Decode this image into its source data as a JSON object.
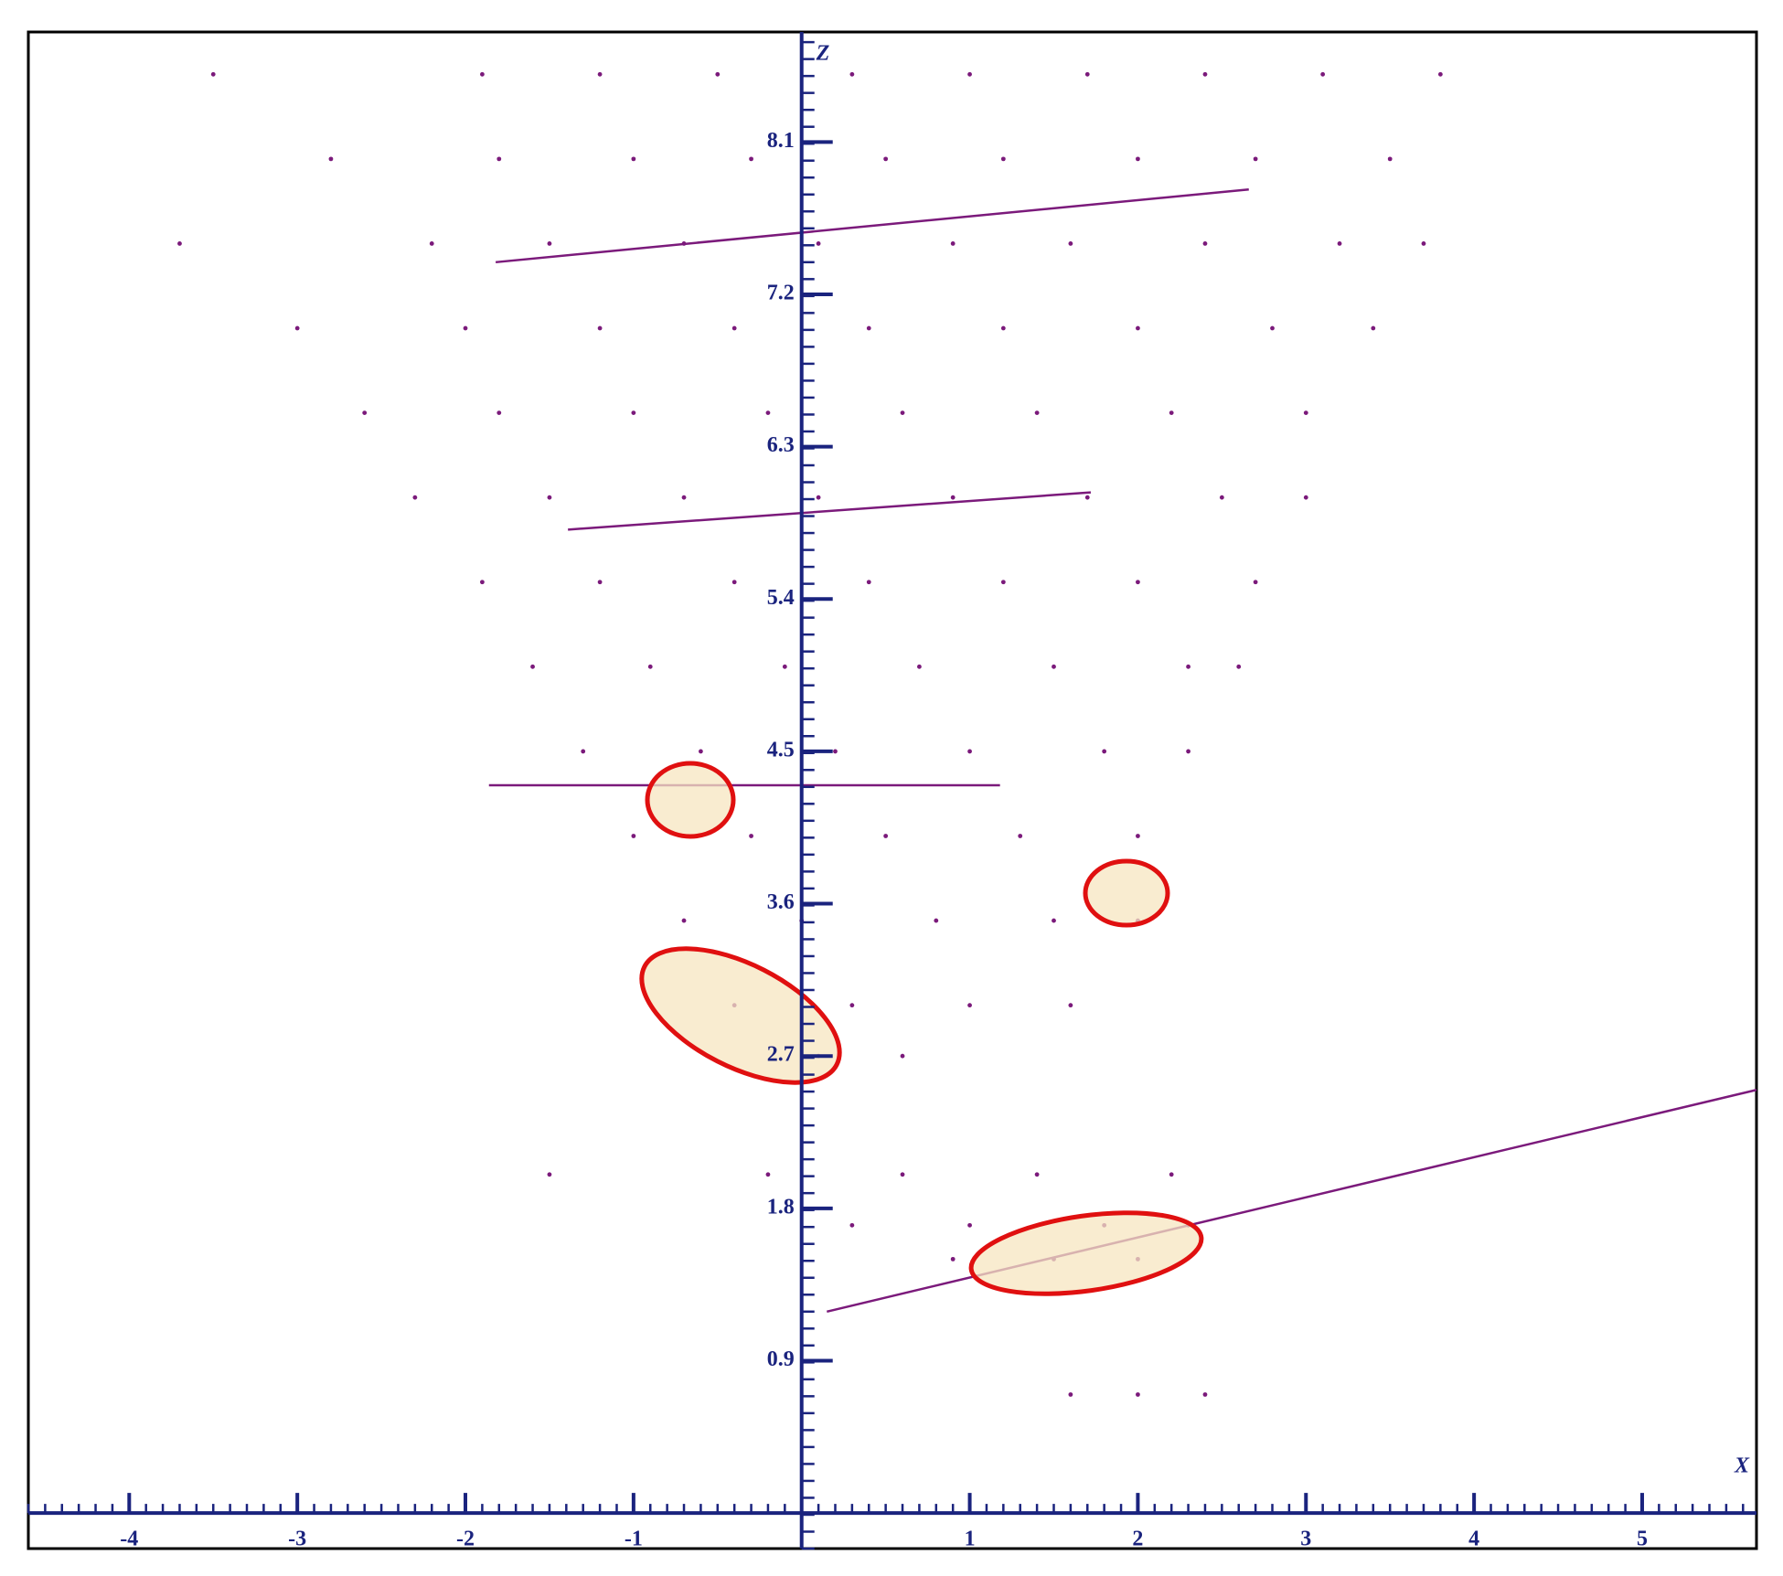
{
  "chart_data": {
    "type": "scatter",
    "x_label": "X",
    "y_label": "Z",
    "xlim": [
      -4.6,
      5.68
    ],
    "ylim": [
      -0.21,
      8.75
    ],
    "xticks": [
      -4,
      -3,
      -2,
      -1,
      1,
      2,
      3,
      4,
      5
    ],
    "yticks": [
      0.9,
      1.8,
      2.7,
      3.6,
      4.5,
      5.4,
      6.3,
      7.2,
      8.1
    ],
    "axis_color": "#1a237e",
    "series": [
      {
        "color": "#7b1a7b",
        "x": [
          -3.5,
          -1.9,
          -1.2,
          -0.5,
          0.3,
          1.0,
          1.7,
          2.4,
          3.1,
          3.8,
          -2.8,
          -1.8,
          -1.0,
          -0.3,
          0.5,
          1.2,
          2.0,
          2.7,
          3.5,
          -3.7,
          -2.2,
          -1.5,
          -0.7,
          0.1,
          0.9,
          1.6,
          2.4,
          3.2,
          3.7,
          -3.0,
          -2.0,
          -1.2,
          -0.4,
          0.4,
          1.2,
          2.0,
          2.8,
          3.4,
          -2.6,
          -1.8,
          -1.0,
          -0.2,
          0.6,
          1.4,
          2.2,
          3.0,
          -2.3,
          -1.5,
          -0.7,
          0.1,
          0.9,
          1.7,
          2.5,
          3.0,
          -1.9,
          -1.2,
          -0.4,
          0.4,
          1.2,
          2.0,
          2.7,
          -1.6,
          -0.9,
          -0.1,
          0.7,
          1.5,
          2.3,
          2.6,
          -1.3,
          -0.6,
          0.2,
          1.0,
          1.8,
          2.3,
          -1.0,
          -0.3,
          0.5,
          1.3,
          2.0,
          -0.7,
          0.0,
          0.8,
          1.5,
          2.0,
          -0.4,
          0.3,
          1.0,
          1.6,
          0.1,
          0.6,
          -1.5,
          -0.2,
          0.6,
          1.4,
          2.2,
          0.3,
          1.0,
          1.8,
          2.3,
          0.9,
          1.5,
          2.0,
          1.6,
          2.0,
          2.4
        ],
        "values": [
          8.5,
          8.5,
          8.5,
          8.5,
          8.5,
          8.5,
          8.5,
          8.5,
          8.5,
          8.5,
          8.0,
          8.0,
          8.0,
          8.0,
          8.0,
          8.0,
          8.0,
          8.0,
          8.0,
          7.5,
          7.5,
          7.5,
          7.5,
          7.5,
          7.5,
          7.5,
          7.5,
          7.5,
          7.5,
          7.0,
          7.0,
          7.0,
          7.0,
          7.0,
          7.0,
          7.0,
          7.0,
          7.0,
          6.5,
          6.5,
          6.5,
          6.5,
          6.5,
          6.5,
          6.5,
          6.5,
          6.0,
          6.0,
          6.0,
          6.0,
          6.0,
          6.0,
          6.0,
          6.0,
          5.5,
          5.5,
          5.5,
          5.5,
          5.5,
          5.5,
          5.5,
          5.0,
          5.0,
          5.0,
          5.0,
          5.0,
          5.0,
          5.0,
          4.5,
          4.5,
          4.5,
          4.5,
          4.5,
          4.5,
          4.0,
          4.0,
          4.0,
          4.0,
          4.0,
          3.5,
          3.5,
          3.5,
          3.5,
          3.5,
          3.0,
          3.0,
          3.0,
          3.0,
          2.7,
          2.7,
          2.0,
          2.0,
          2.0,
          2.0,
          2.0,
          1.7,
          1.7,
          1.7,
          1.7,
          1.5,
          1.5,
          1.5,
          0.7,
          0.7,
          0.7
        ]
      },
      {
        "color": "#7b1a7b",
        "line": true,
        "x": [
          0.15,
          5.68
        ],
        "values": [
          1.19,
          2.5
        ]
      },
      {
        "color": "#7b1a7b",
        "line": true,
        "x": [
          -1.82,
          2.66
        ],
        "values": [
          7.39,
          7.82
        ]
      },
      {
        "color": "#7b1a7b",
        "line": true,
        "x": [
          -1.39,
          1.72
        ],
        "values": [
          5.81,
          6.03
        ]
      },
      {
        "color": "#7b1a7b",
        "line": true,
        "x": [
          -1.86,
          1.18
        ],
        "values": [
          4.3,
          4.3
        ]
      }
    ]
  }
}
